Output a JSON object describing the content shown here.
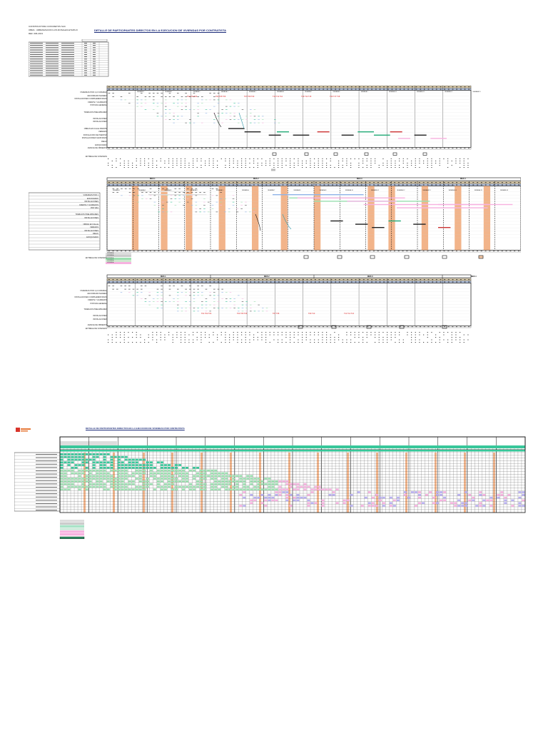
{
  "header": {
    "line1": "CONSTRUCTORA CONCRETOS SAC",
    "line2": "OBRA : URBANIZACION LOS ROSALES ETAPA III",
    "line3": "REF. 006-2013",
    "title": "DETALLE DE PARTICIPANTES DIRECTOS EN LA EJECUCION DE VIVIENDAS POR CONTRATISTA"
  },
  "section_top": {
    "row_labels": [
      "VIVIENDAS POR 1 (A VIVIENDA)",
      "ENCOFRADO MADERA",
      "INSTALACIONES COMPLEMENTARIAS",
      "FRENTE Y ACABADOS",
      "PINTURA GENERAL",
      "",
      "TRABAJOS PRELIMINARES",
      "",
      "INSTALACIONES",
      "INSTALACIONES",
      "",
      "OBRAS EN CALLE FRENTE",
      "VEREDAS",
      "INSTALACION DE PUENTES",
      "INSTALACIONES SANITARIAS",
      "RIEGO",
      "ADOQUINADO"
    ],
    "weeks": [
      "SEMANA 1",
      "SEMANA 2",
      "SEMANA 3",
      "SEMANA 4",
      "SEMANA 5",
      "SEMANA 6",
      "SEMANA 7",
      "SEMANA 8",
      "SEMANA 9",
      "SEMANA 10",
      "SEMANA 11",
      "SEMANA 12",
      "SEMANA 13"
    ],
    "red_notes": [
      "T01 T02 T03",
      "T04 T05 T06",
      "T07 T08 T09",
      "T10 T11 T12",
      "T13 T14 T15",
      "T16 T17 T18"
    ],
    "footer_labels": [
      "AVANCE DE OBREROS",
      "ENTREGA DE VIVIENDAS"
    ]
  },
  "section_middle": {
    "months": [
      "MES 1",
      "MES 2",
      "MES 3",
      "MES 4"
    ],
    "weeks": [
      "SEMANA 1",
      "SEMANA 2",
      "SEMANA 3",
      "SEMANA 4",
      "SEMANA 5",
      "SEMANA 6",
      "SEMANA 7",
      "SEMANA 8",
      "SEMANA 9",
      "SEMANA 10",
      "SEMANA 11",
      "SEMANA 12",
      "SEMANA 13",
      "SEMANA 14",
      "SEMANA 15",
      "SEMANA 16"
    ],
    "row_labels": [
      "VIVIENDAS POR 1",
      "ENCOFRADO",
      "INSTALACIONES",
      "FRENTE Y ACABADOS",
      "PINTURA",
      "",
      "TRABAJOS PRELIMINARES",
      "INSTALACIONES",
      "",
      "OBRAS EN CALLE",
      "VEREDAS",
      "INSTALACIONES",
      "RIEGO",
      "ADOQUINADO"
    ],
    "legend": [
      "VIVIENDA",
      "VIVIENDA",
      "VIVIENDA",
      "VIVIENDA",
      "VIVIENDA"
    ],
    "footer_labels": [
      "ENTREGA DE VIVIENDAS"
    ]
  },
  "section_third": {
    "months": [
      "MES 1",
      "MES 2",
      "MES 3",
      "MES 4"
    ],
    "row_labels": [
      "VIVIENDAS POR 1 (A VIVIENDA)",
      "ENCOFRADO MADERA",
      "INSTALACIONES COMPLEMENTARIAS",
      "FRENTE Y ACABADOS",
      "PINTURA GENERAL",
      "",
      "TRABAJOS PRELIMINARES",
      "",
      "INSTALACIONES",
      "INSTALACIONES",
      "",
      "AVANCE DE OBREROS",
      "ENTREGA DE VIVIENDAS"
    ]
  },
  "section_bottom": {
    "title": "DETALLE DE PARTICIPANTES DIRECTOS EN LA EJECUCION DE VIVIENDAS POR CONTRATISTA"
  },
  "colors": {
    "orange": "#f2b48a",
    "pink": "#f7b2e0",
    "green": "#9be0b0",
    "teal": "#38c79a",
    "blue": "#8fb4e8",
    "tan": "#d9c9a6",
    "header_blue": "#b8c9e8"
  }
}
